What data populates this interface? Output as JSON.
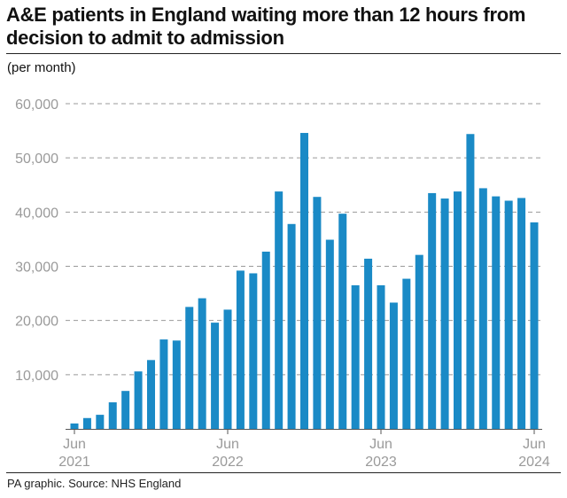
{
  "title": "A&E patients in England waiting more than 12 hours from decision to admit to admission",
  "unit_note": "(per month)",
  "source": "PA graphic. Source: NHS England",
  "colors": {
    "bar": "#1a8ac6",
    "grid": "#999999",
    "tick_text": "#9a9a9a",
    "axis": "#555555"
  },
  "chart_data": {
    "type": "bar",
    "title": "A&E patients in England waiting more than 12 hours from decision to admit to admission",
    "ylabel": "(per month)",
    "xlabel": "",
    "ylim": [
      0,
      60000
    ],
    "yticks": [
      10000,
      20000,
      30000,
      40000,
      50000,
      60000
    ],
    "ytick_labels": [
      "10,000",
      "20,000",
      "30,000",
      "40,000",
      "50,000",
      "60,000"
    ],
    "grid": true,
    "categories": [
      "Jun 2021",
      "Jul 2021",
      "Aug 2021",
      "Sep 2021",
      "Oct 2021",
      "Nov 2021",
      "Dec 2021",
      "Jan 2022",
      "Feb 2022",
      "Mar 2022",
      "Apr 2022",
      "May 2022",
      "Jun 2022",
      "Jul 2022",
      "Aug 2022",
      "Sep 2022",
      "Oct 2022",
      "Nov 2022",
      "Dec 2022",
      "Jan 2023",
      "Feb 2023",
      "Mar 2023",
      "Apr 2023",
      "May 2023",
      "Jun 2023",
      "Jul 2023",
      "Aug 2023",
      "Sep 2023",
      "Oct 2023",
      "Nov 2023",
      "Dec 2023",
      "Jan 2024",
      "Feb 2024",
      "Mar 2024",
      "Apr 2024",
      "May 2024",
      "Jun 2024"
    ],
    "values": [
      1000,
      2000,
      2600,
      4900,
      7000,
      10600,
      12700,
      16500,
      16300,
      22500,
      24100,
      19600,
      22000,
      29200,
      28700,
      32700,
      43800,
      37800,
      54600,
      42800,
      34900,
      39700,
      26500,
      31400,
      26500,
      23300,
      27700,
      32100,
      43500,
      42500,
      43800,
      54400,
      44400,
      42900,
      42100,
      42600,
      38100
    ],
    "x_tick_labels": [
      {
        "index": 0,
        "month": "Jun",
        "year": "2021"
      },
      {
        "index": 12,
        "month": "Jun",
        "year": "2022"
      },
      {
        "index": 24,
        "month": "Jun",
        "year": "2023"
      },
      {
        "index": 36,
        "month": "Jun",
        "year": "2024"
      }
    ]
  }
}
